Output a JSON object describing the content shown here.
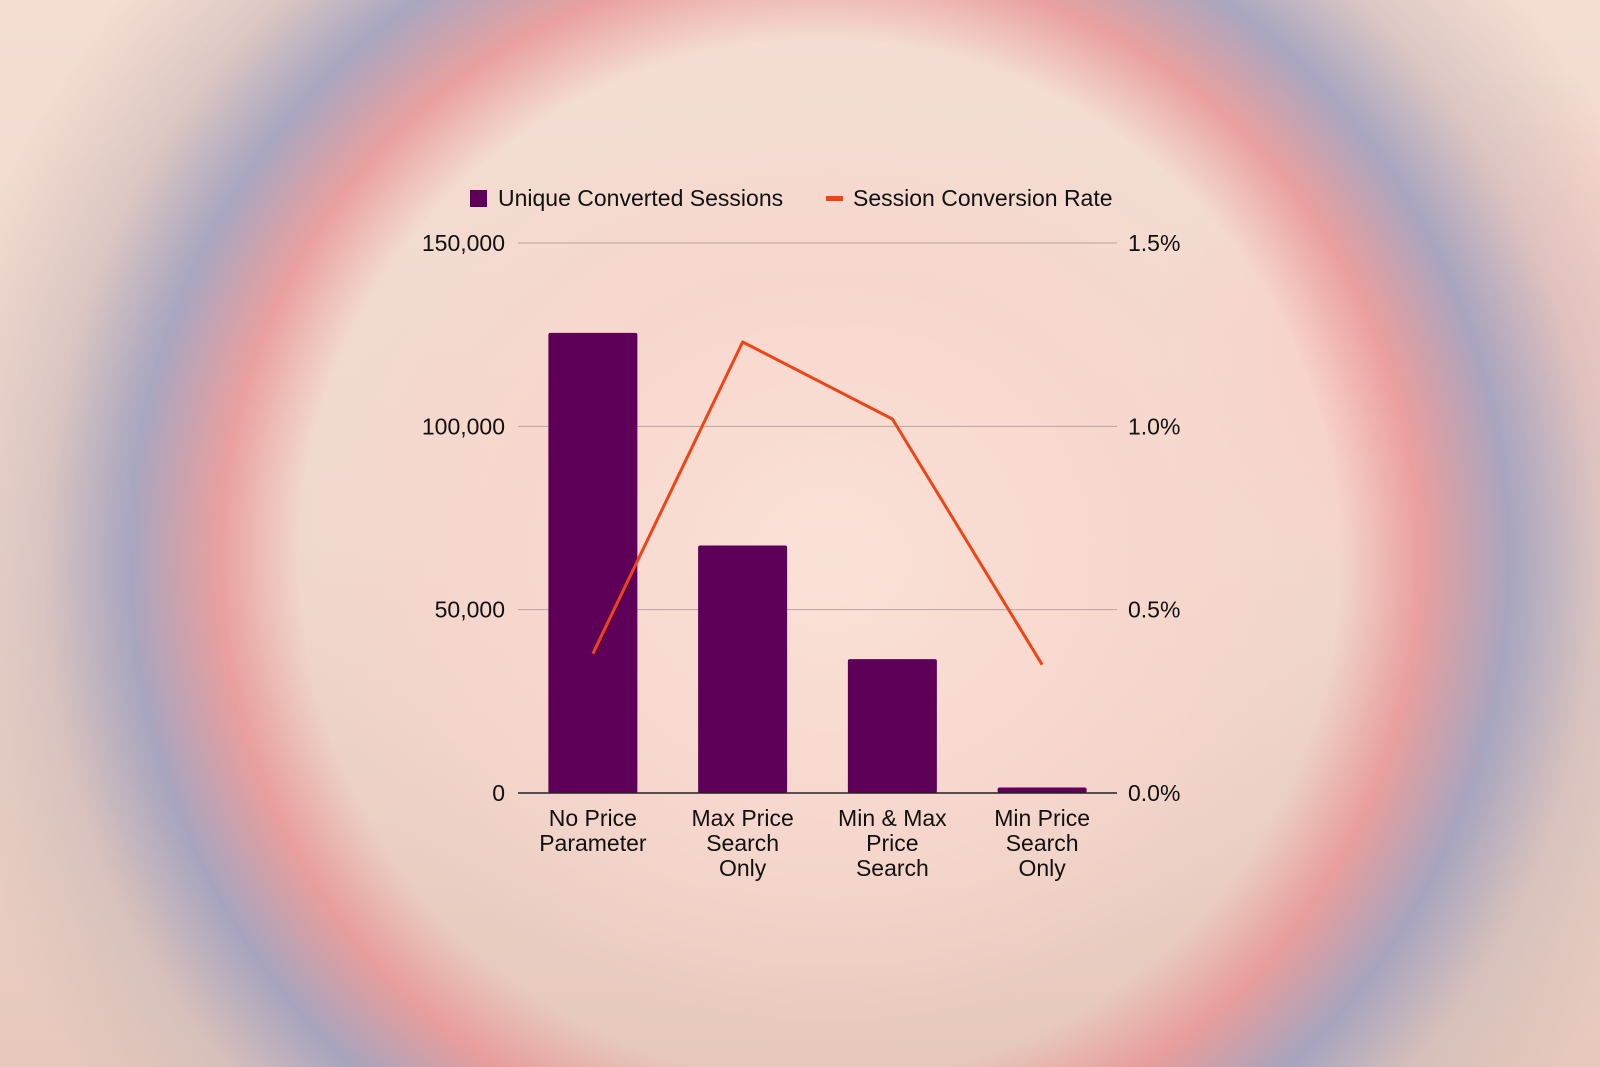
{
  "chart_data": {
    "type": "bar",
    "categories": [
      [
        "No Price",
        "Parameter"
      ],
      [
        "Max Price",
        "Search",
        "Only"
      ],
      [
        "Min & Max",
        "Price",
        "Search"
      ],
      [
        "Min Price",
        "Search",
        "Only"
      ]
    ],
    "series": [
      {
        "name": "Unique Converted Sessions",
        "type": "bar",
        "axis": "left",
        "color": "#5e0058",
        "values": [
          125500,
          67500,
          36500,
          1500
        ]
      },
      {
        "name": "Session Conversion Rate",
        "type": "line",
        "axis": "right",
        "color": "#ef4416",
        "values": [
          0.38,
          1.23,
          1.02,
          0.35
        ]
      }
    ],
    "left_axis": {
      "ticks": [
        "0",
        "50,000",
        "100,000",
        "150,000"
      ],
      "ylim": [
        0,
        150000
      ]
    },
    "right_axis": {
      "ticks": [
        "0.0%",
        "0.5%",
        "1.0%",
        "1.5%"
      ],
      "ylim": [
        0,
        1.5
      ]
    },
    "grid": true,
    "legend_position": "top"
  }
}
